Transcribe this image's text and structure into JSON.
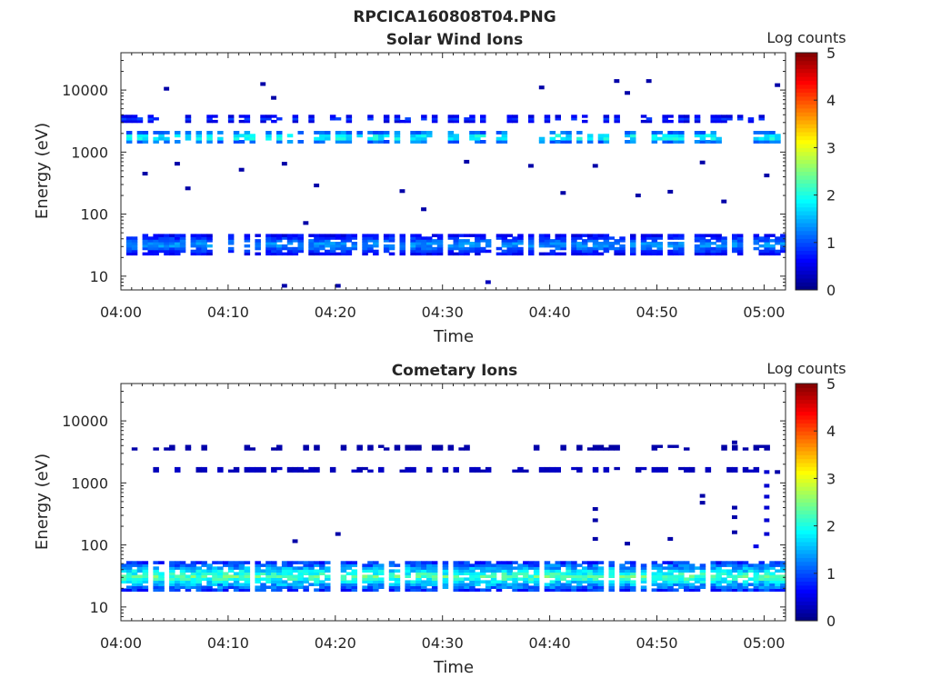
{
  "figure": {
    "title": "RPCICA160808T04.PNG"
  },
  "chart_data": [
    {
      "type": "heatmap",
      "title": "Solar Wind Ions",
      "xlabel": "Time",
      "ylabel": "Energy (eV)",
      "y_scale": "log",
      "x_range": [
        "04:00",
        "05:02"
      ],
      "x_ticks": [
        "04:00",
        "04:10",
        "04:20",
        "04:30",
        "04:40",
        "04:50",
        "05:00"
      ],
      "y_range": [
        6,
        40000
      ],
      "y_ticks": [
        "10",
        "100",
        "1000",
        "10000"
      ],
      "colorbar": {
        "label": "Log counts",
        "range": [
          0,
          5
        ],
        "ticks": [
          "0",
          "1",
          "2",
          "3",
          "4",
          "5"
        ],
        "colormap": "jet"
      },
      "grid": false,
      "bands": [
        {
          "energy_eV": [
            22,
            48
          ],
          "time_range": [
            "04:00",
            "05:02"
          ],
          "log_counts": [
            0.3,
            1.6
          ],
          "coverage": 0.78
        },
        {
          "energy_eV": [
            1400,
            2200
          ],
          "time_range": [
            "04:00",
            "05:02"
          ],
          "log_counts": [
            0.6,
            2.4
          ],
          "coverage": 0.55
        },
        {
          "energy_eV": [
            3000,
            4000
          ],
          "time_range": [
            "04:00",
            "05:02"
          ],
          "log_counts": [
            0.2,
            1.0
          ],
          "coverage": 0.45
        }
      ],
      "sparse_points": [
        {
          "time": "04:04",
          "energy_eV": 10500,
          "log_counts": 0.2
        },
        {
          "time": "04:13",
          "energy_eV": 12500,
          "log_counts": 0.2
        },
        {
          "time": "04:14",
          "energy_eV": 7500,
          "log_counts": 0.2
        },
        {
          "time": "04:02",
          "energy_eV": 450,
          "log_counts": 0.2
        },
        {
          "time": "04:05",
          "energy_eV": 650,
          "log_counts": 0.2
        },
        {
          "time": "04:06",
          "energy_eV": 260,
          "log_counts": 0.2
        },
        {
          "time": "04:11",
          "energy_eV": 520,
          "log_counts": 0.2
        },
        {
          "time": "04:15",
          "energy_eV": 650,
          "log_counts": 0.2
        },
        {
          "time": "04:18",
          "energy_eV": 290,
          "log_counts": 0.2
        },
        {
          "time": "04:17",
          "energy_eV": 72,
          "log_counts": 0.2
        },
        {
          "time": "04:15",
          "energy_eV": 7,
          "log_counts": 0.2
        },
        {
          "time": "04:20",
          "energy_eV": 7,
          "log_counts": 0.2
        },
        {
          "time": "04:26",
          "energy_eV": 235,
          "log_counts": 0.2
        },
        {
          "time": "04:28",
          "energy_eV": 120,
          "log_counts": 0.2
        },
        {
          "time": "04:32",
          "energy_eV": 700,
          "log_counts": 0.2
        },
        {
          "time": "04:34",
          "energy_eV": 8,
          "log_counts": 0.3
        },
        {
          "time": "04:38",
          "energy_eV": 600,
          "log_counts": 0.2
        },
        {
          "time": "04:39",
          "energy_eV": 11000,
          "log_counts": 0.2
        },
        {
          "time": "04:41",
          "energy_eV": 220,
          "log_counts": 0.2
        },
        {
          "time": "04:44",
          "energy_eV": 600,
          "log_counts": 0.2
        },
        {
          "time": "04:46",
          "energy_eV": 14000,
          "log_counts": 0.2
        },
        {
          "time": "04:47",
          "energy_eV": 9000,
          "log_counts": 0.2
        },
        {
          "time": "04:48",
          "energy_eV": 200,
          "log_counts": 0.2
        },
        {
          "time": "04:49",
          "energy_eV": 14000,
          "log_counts": 0.2
        },
        {
          "time": "04:51",
          "energy_eV": 230,
          "log_counts": 0.2
        },
        {
          "time": "04:54",
          "energy_eV": 680,
          "log_counts": 0.2
        },
        {
          "time": "04:56",
          "energy_eV": 160,
          "log_counts": 0.2
        },
        {
          "time": "05:00",
          "energy_eV": 420,
          "log_counts": 0.2
        },
        {
          "time": "05:01",
          "energy_eV": 12000,
          "log_counts": 0.2
        }
      ]
    },
    {
      "type": "heatmap",
      "title": "Cometary Ions",
      "xlabel": "Time",
      "ylabel": "Energy (eV)",
      "y_scale": "log",
      "x_range": [
        "04:00",
        "05:02"
      ],
      "x_ticks": [
        "04:00",
        "04:10",
        "04:20",
        "04:30",
        "04:40",
        "04:50",
        "05:00"
      ],
      "y_range": [
        6,
        40000
      ],
      "y_ticks": [
        "10",
        "100",
        "1000",
        "10000"
      ],
      "colorbar": {
        "label": "Log counts",
        "range": [
          0,
          5
        ],
        "ticks": [
          "0",
          "1",
          "2",
          "3",
          "4",
          "5"
        ],
        "colormap": "jet"
      },
      "grid": false,
      "bands": [
        {
          "energy_eV": [
            18,
            55
          ],
          "time_range": [
            "04:00",
            "05:02"
          ],
          "log_counts": [
            0.4,
            2.6
          ],
          "coverage": 0.92
        },
        {
          "energy_eV": [
            1500,
            1800
          ],
          "time_range": [
            "04:00",
            "05:02"
          ],
          "log_counts": [
            0.1,
            0.5
          ],
          "coverage": 0.45
        },
        {
          "energy_eV": [
            3400,
            4100
          ],
          "time_range": [
            "04:00",
            "05:02"
          ],
          "log_counts": [
            0.1,
            0.3
          ],
          "coverage": 0.35
        }
      ],
      "sparse_points": [
        {
          "time": "04:16",
          "energy_eV": 115,
          "log_counts": 0.2
        },
        {
          "time": "04:20",
          "energy_eV": 150,
          "log_counts": 0.2
        },
        {
          "time": "04:44",
          "energy_eV": 380,
          "log_counts": 0.2
        },
        {
          "time": "04:44",
          "energy_eV": 250,
          "log_counts": 0.2
        },
        {
          "time": "04:44",
          "energy_eV": 125,
          "log_counts": 0.2
        },
        {
          "time": "04:47",
          "energy_eV": 105,
          "log_counts": 0.2
        },
        {
          "time": "04:51",
          "energy_eV": 125,
          "log_counts": 0.2
        },
        {
          "time": "04:54",
          "energy_eV": 620,
          "log_counts": 0.2
        },
        {
          "time": "04:54",
          "energy_eV": 480,
          "log_counts": 0.2
        },
        {
          "time": "04:57",
          "energy_eV": 400,
          "log_counts": 0.2
        },
        {
          "time": "04:57",
          "energy_eV": 280,
          "log_counts": 0.2
        },
        {
          "time": "04:57",
          "energy_eV": 160,
          "log_counts": 0.2
        },
        {
          "time": "04:57",
          "energy_eV": 4500,
          "log_counts": 0.2
        },
        {
          "time": "05:00",
          "energy_eV": 1500,
          "log_counts": 0.4
        },
        {
          "time": "05:00",
          "energy_eV": 900,
          "log_counts": 0.4
        },
        {
          "time": "05:00",
          "energy_eV": 600,
          "log_counts": 0.4
        },
        {
          "time": "05:00",
          "energy_eV": 400,
          "log_counts": 0.4
        },
        {
          "time": "05:00",
          "energy_eV": 250,
          "log_counts": 0.4
        },
        {
          "time": "05:00",
          "energy_eV": 150,
          "log_counts": 0.4
        },
        {
          "time": "04:59",
          "energy_eV": 95,
          "log_counts": 0.5
        },
        {
          "time": "05:01",
          "energy_eV": 1500,
          "log_counts": 0.2
        }
      ]
    }
  ]
}
